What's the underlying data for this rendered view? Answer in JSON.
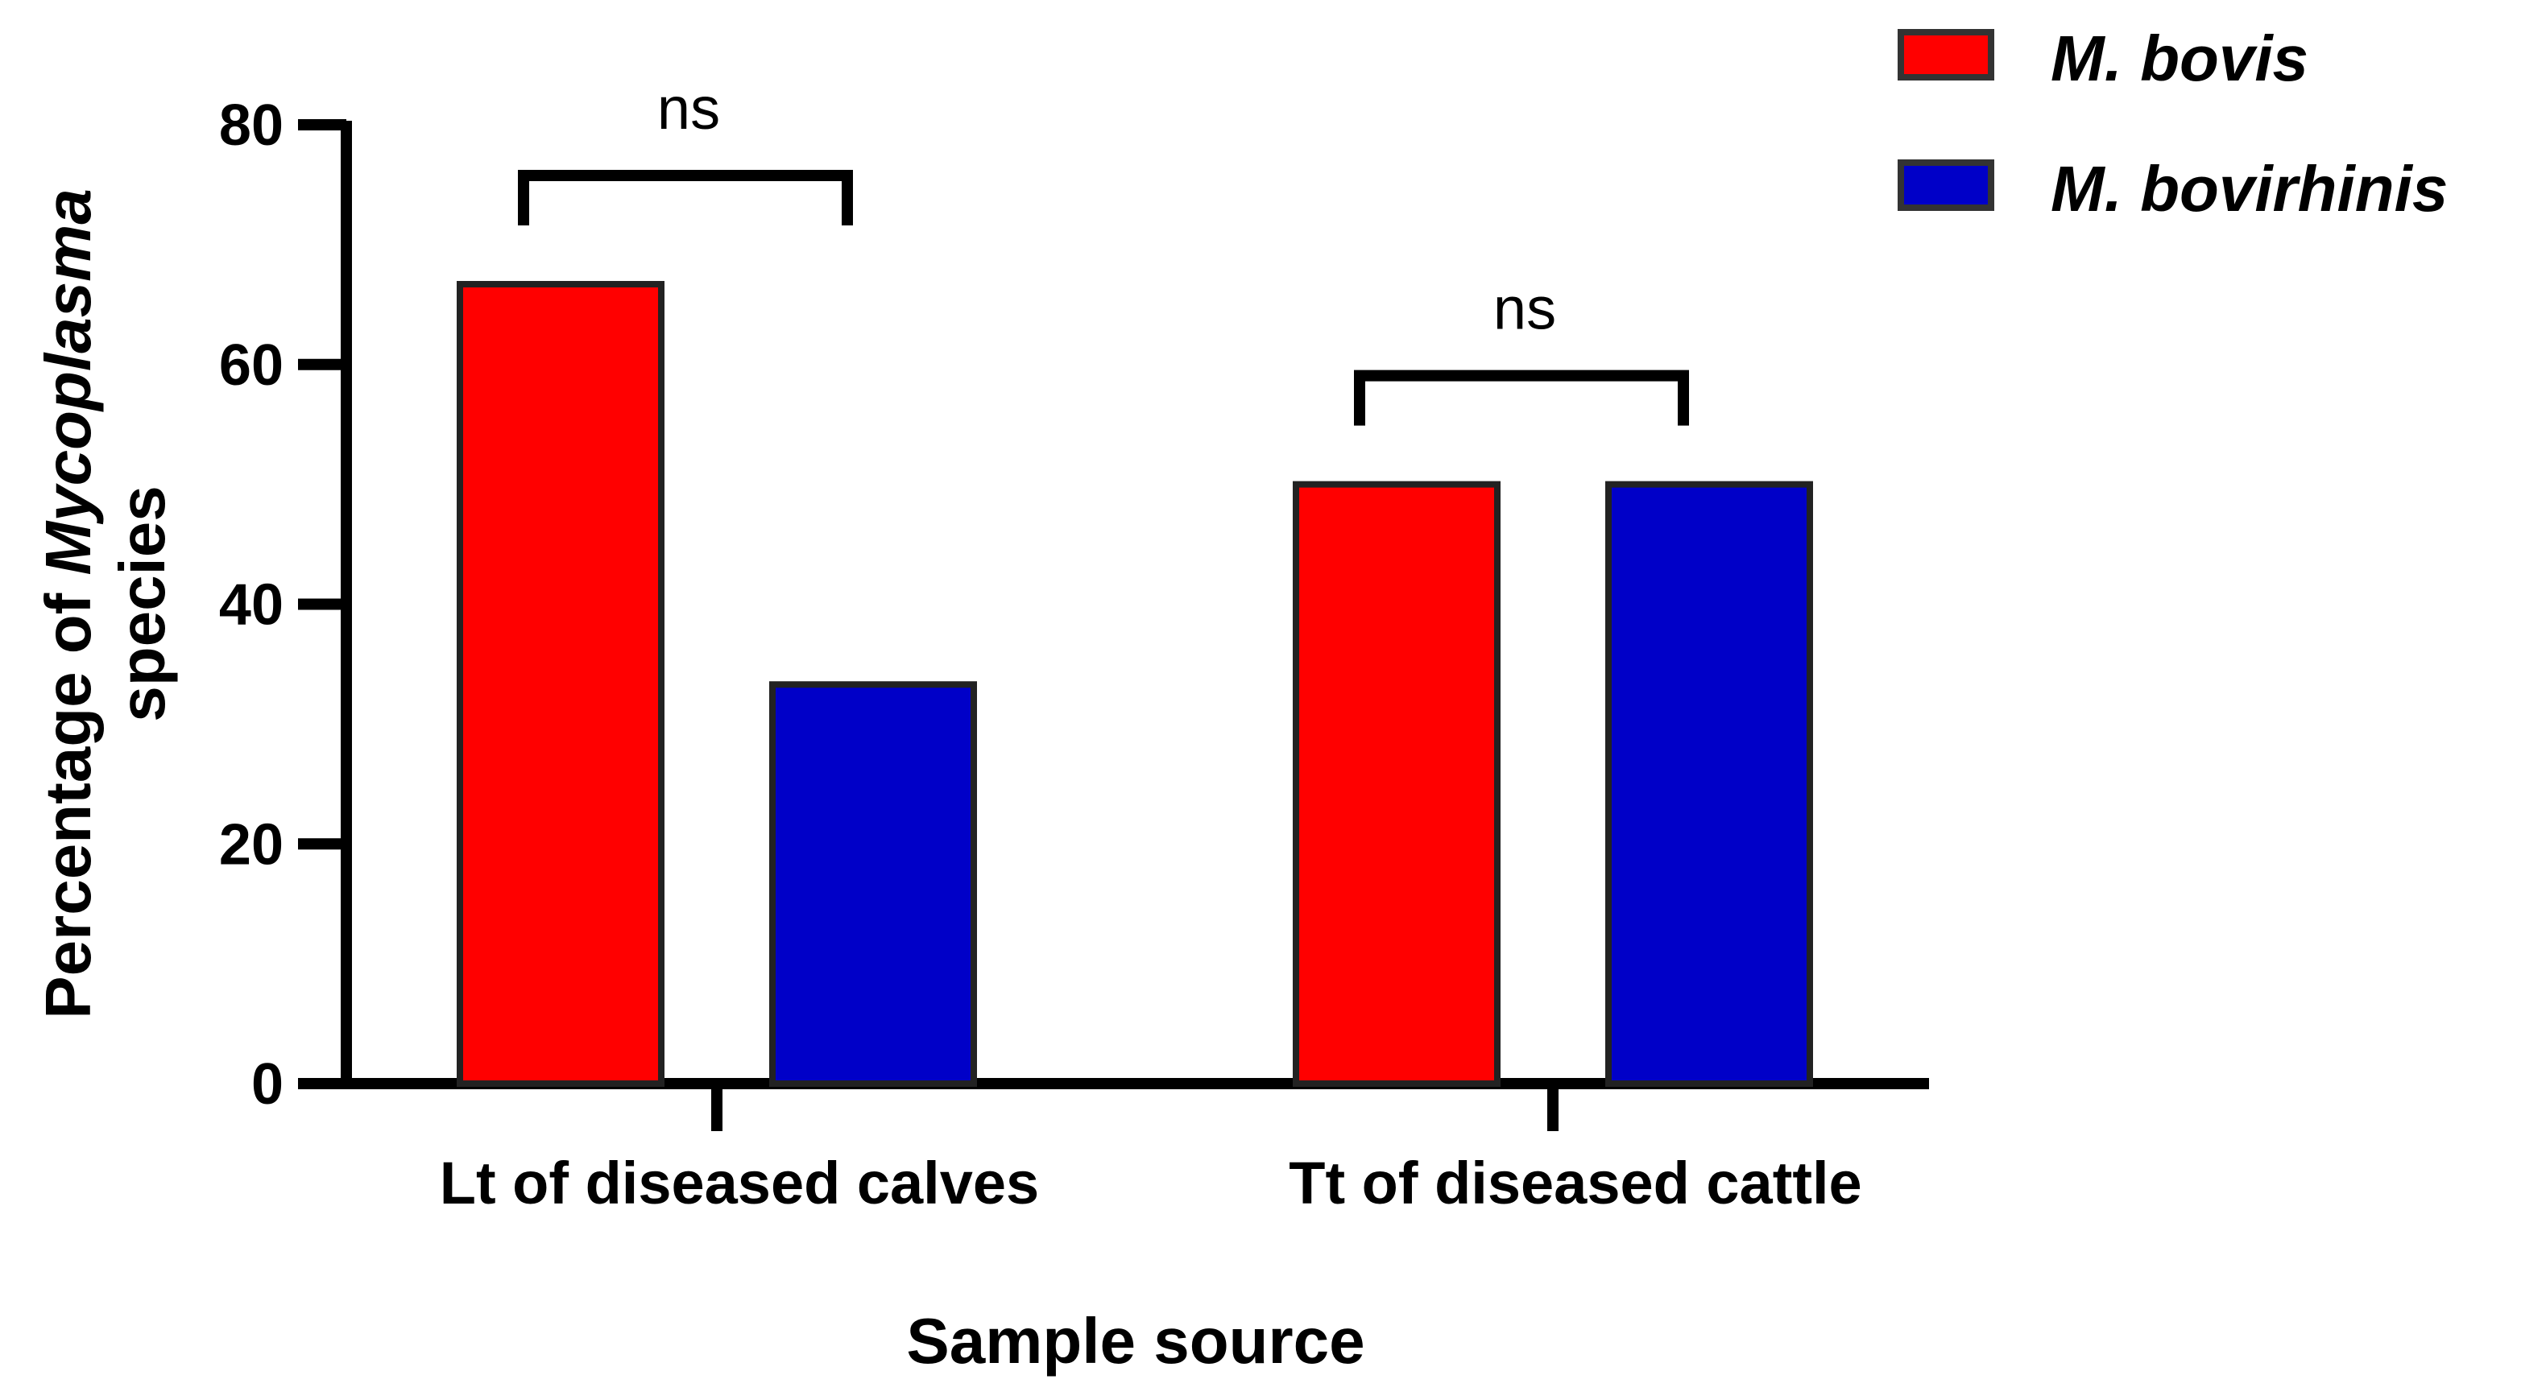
{
  "chart_data": {
    "type": "bar",
    "categories": [
      "Lt of diseased calves",
      "Tt of diseased cattle"
    ],
    "series": [
      {
        "name": "M. bovis",
        "values": [
          66.7,
          50
        ],
        "color": "#ff0000"
      },
      {
        "name": "M. bovirhinis",
        "values": [
          33.3,
          50
        ],
        "color": "#0000c8"
      }
    ],
    "xlabel": "Sample source",
    "ylabel": {
      "prefix": "Percentage of ",
      "italic": "Mycoplasma",
      "line2": "species"
    },
    "ylim": [
      0,
      80
    ],
    "yticks": [
      0,
      20,
      40,
      60,
      80
    ],
    "significance": [
      {
        "category": "Lt of diseased calves",
        "label": "ns"
      },
      {
        "category": "Tt of diseased cattle",
        "label": "ns"
      }
    ],
    "legend_position": "top-right",
    "grid": false
  }
}
